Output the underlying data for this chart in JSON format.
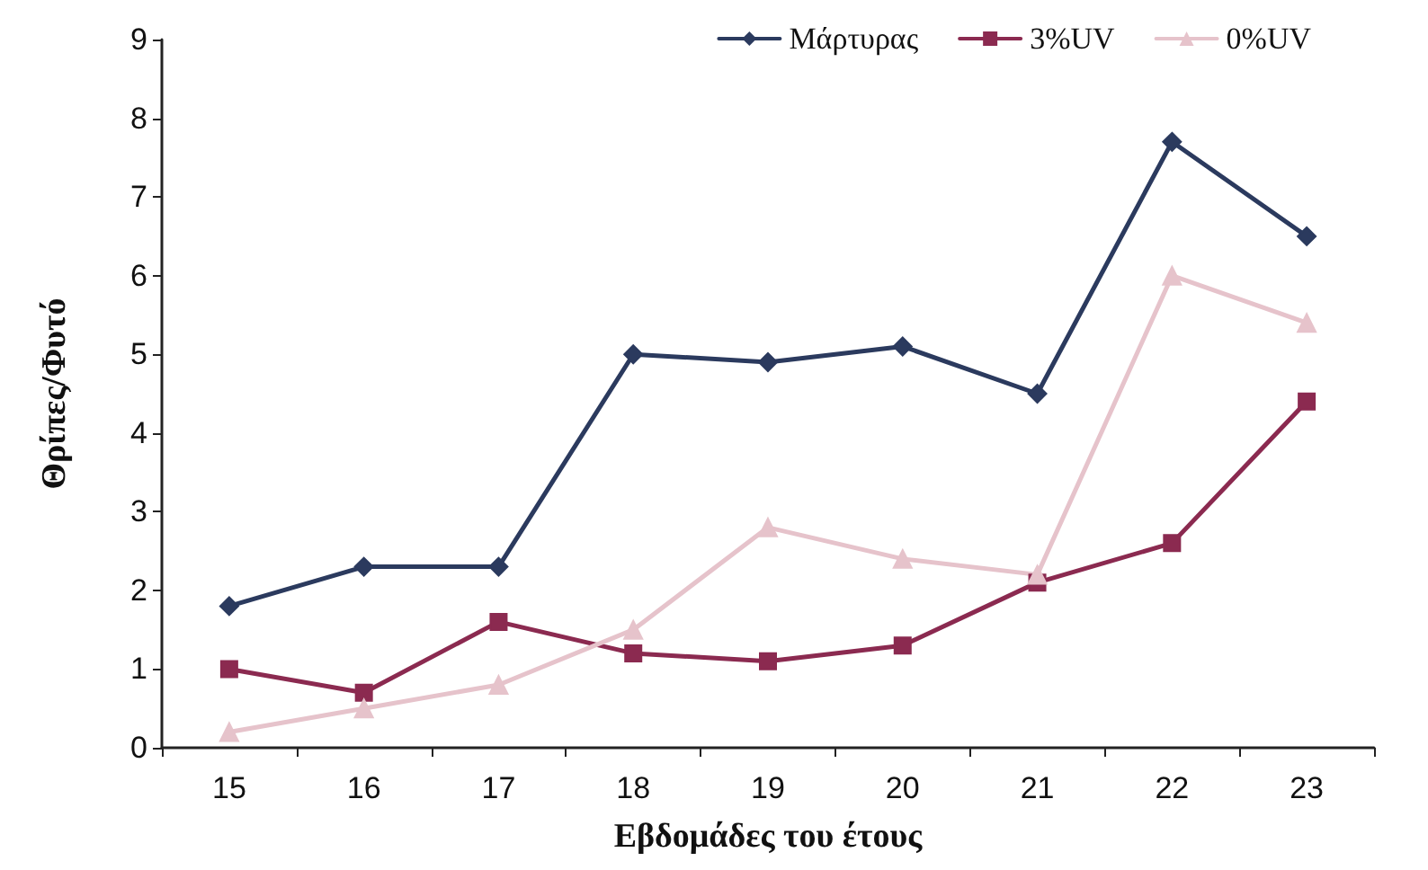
{
  "chart_data": {
    "type": "line",
    "xlabel": "Εβδομάδες του έτους",
    "ylabel": "Θρίπες/Φυτό",
    "categories": [
      "15",
      "16",
      "17",
      "18",
      "19",
      "20",
      "21",
      "22",
      "23"
    ],
    "series": [
      {
        "name": "Μάρτυρας",
        "color": "#2b3a5e",
        "marker": "diamond",
        "values": [
          1.8,
          2.3,
          2.3,
          5.0,
          4.9,
          5.1,
          4.5,
          7.7,
          6.5
        ]
      },
      {
        "name": "3%UV",
        "color": "#8b2a50",
        "marker": "square",
        "values": [
          1.0,
          0.7,
          1.6,
          1.2,
          1.1,
          1.3,
          2.1,
          2.6,
          4.4
        ]
      },
      {
        "name": "0%UV",
        "color": "#e6c3cb",
        "marker": "triangle",
        "values": [
          0.2,
          0.5,
          0.8,
          1.5,
          2.8,
          2.4,
          2.2,
          6.0,
          5.4
        ]
      }
    ],
    "ylim": [
      0,
      9
    ],
    "yticks": [
      0,
      1,
      2,
      3,
      4,
      5,
      6,
      7,
      8,
      9
    ],
    "grid": false,
    "legend": "top right"
  }
}
